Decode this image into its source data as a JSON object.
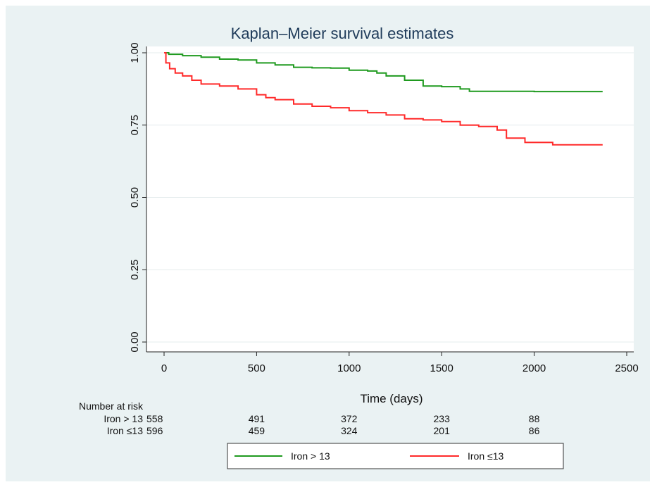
{
  "chart_data": {
    "type": "line",
    "title": "Kaplan–Meier survival estimates",
    "xlabel": "Time (days)",
    "ylabel": "",
    "xlim": [
      0,
      2500
    ],
    "ylim": [
      0,
      1
    ],
    "x_ticks": [
      0,
      500,
      1000,
      1500,
      2000,
      2500
    ],
    "y_ticks": [
      0,
      0.25,
      0.5,
      0.75,
      1
    ],
    "x_tick_labels": [
      "0",
      "500",
      "1000",
      "1500",
      "2000",
      "2500"
    ],
    "y_tick_labels": [
      "0.00",
      "0.25",
      "0.50",
      "0.75",
      "1.00"
    ],
    "grid": true,
    "legend_position": "bottom",
    "step": true,
    "series": [
      {
        "name": "Iron > 13",
        "color": "#1f9a1f",
        "points": [
          [
            0,
            1.0
          ],
          [
            25,
            0.995
          ],
          [
            100,
            0.99
          ],
          [
            200,
            0.985
          ],
          [
            300,
            0.978
          ],
          [
            400,
            0.975
          ],
          [
            500,
            0.965
          ],
          [
            600,
            0.958
          ],
          [
            700,
            0.95
          ],
          [
            800,
            0.948
          ],
          [
            900,
            0.947
          ],
          [
            1000,
            0.94
          ],
          [
            1100,
            0.937
          ],
          [
            1150,
            0.93
          ],
          [
            1200,
            0.92
          ],
          [
            1300,
            0.905
          ],
          [
            1400,
            0.885
          ],
          [
            1500,
            0.883
          ],
          [
            1600,
            0.875
          ],
          [
            1650,
            0.867
          ],
          [
            2000,
            0.866
          ],
          [
            2370,
            0.866
          ]
        ]
      },
      {
        "name": "Iron ≤13",
        "color": "#ff2a2a",
        "points": [
          [
            0,
            1.0
          ],
          [
            10,
            0.965
          ],
          [
            30,
            0.945
          ],
          [
            60,
            0.93
          ],
          [
            100,
            0.92
          ],
          [
            150,
            0.905
          ],
          [
            200,
            0.892
          ],
          [
            300,
            0.885
          ],
          [
            400,
            0.875
          ],
          [
            500,
            0.855
          ],
          [
            550,
            0.845
          ],
          [
            600,
            0.838
          ],
          [
            700,
            0.823
          ],
          [
            800,
            0.815
          ],
          [
            900,
            0.81
          ],
          [
            1000,
            0.8
          ],
          [
            1100,
            0.793
          ],
          [
            1200,
            0.785
          ],
          [
            1300,
            0.772
          ],
          [
            1400,
            0.768
          ],
          [
            1500,
            0.762
          ],
          [
            1600,
            0.75
          ],
          [
            1700,
            0.745
          ],
          [
            1800,
            0.733
          ],
          [
            1850,
            0.705
          ],
          [
            1950,
            0.69
          ],
          [
            2100,
            0.682
          ],
          [
            2370,
            0.682
          ]
        ]
      }
    ],
    "risk_table": {
      "header": "Number at risk",
      "times": [
        0,
        500,
        1000,
        1500,
        2000
      ],
      "rows": [
        {
          "label": "Iron > 13",
          "values": [
            "558",
            "491",
            "372",
            "233",
            "88"
          ]
        },
        {
          "label": "Iron ≤13",
          "values": [
            "596",
            "459",
            "324",
            "201",
            "86"
          ]
        }
      ]
    }
  }
}
